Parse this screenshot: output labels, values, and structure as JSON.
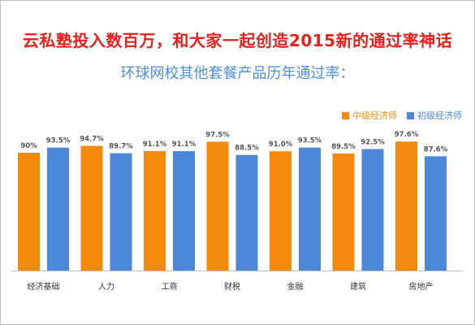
{
  "headline": "云私塾投入数百万，和大家一起创造2015新的通过率神话",
  "subheadline": "环球网校其他套餐产品历年通过率：",
  "colors": {
    "headline": "#e8201b",
    "subheadline": "#4a8fd8",
    "series_mid": "#f48a0c",
    "series_junior": "#4d87da"
  },
  "chart_data": {
    "type": "bar",
    "title": "",
    "xlabel": "",
    "ylabel": "",
    "legend_position": "top-right",
    "grid": false,
    "categories": [
      "经济基础",
      "人力",
      "工商",
      "财税",
      "金融",
      "建筑",
      "房地产"
    ],
    "series": [
      {
        "name": "中级经济师",
        "values": [
          90,
          94.7,
          91.1,
          97.5,
          91.0,
          89.5,
          97.6
        ],
        "labels": [
          "90%",
          "94.7%",
          "91.1%",
          "97.5%",
          "91.0%",
          "89.5%",
          "97.6%"
        ]
      },
      {
        "name": "初级经济师",
        "values": [
          93.5,
          89.7,
          91.1,
          88.5,
          93.5,
          92.5,
          87.6
        ],
        "labels": [
          "93.5%",
          "89.7%",
          "91.1%",
          "88.5%",
          "93.5%",
          "92.5%",
          "87.6%"
        ]
      }
    ],
    "ylim": [
      0,
      100
    ]
  }
}
